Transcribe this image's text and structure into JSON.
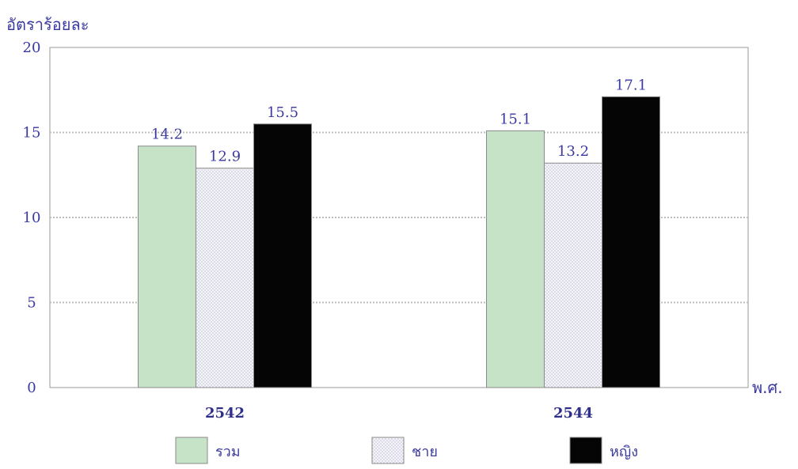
{
  "chart_data": {
    "type": "bar",
    "ylabel": "อัตราร้อยละ",
    "xlabel": "พ.ศ.",
    "categories": [
      "2542",
      "2544"
    ],
    "series": [
      {
        "name": "รวม",
        "values": [
          14.2,
          15.1
        ],
        "color": "#c6e3c8",
        "pattern": "solid"
      },
      {
        "name": "ชาย",
        "values": [
          12.9,
          13.2
        ],
        "color": "#eeeef6",
        "pattern": "dots"
      },
      {
        "name": "หญิง",
        "values": [
          15.5,
          17.1
        ],
        "color": "#050505",
        "pattern": "solid"
      }
    ],
    "ylim": [
      0,
      20
    ],
    "yticks": [
      0,
      5,
      10,
      15,
      20
    ],
    "grid": true,
    "legend": "bottom"
  }
}
